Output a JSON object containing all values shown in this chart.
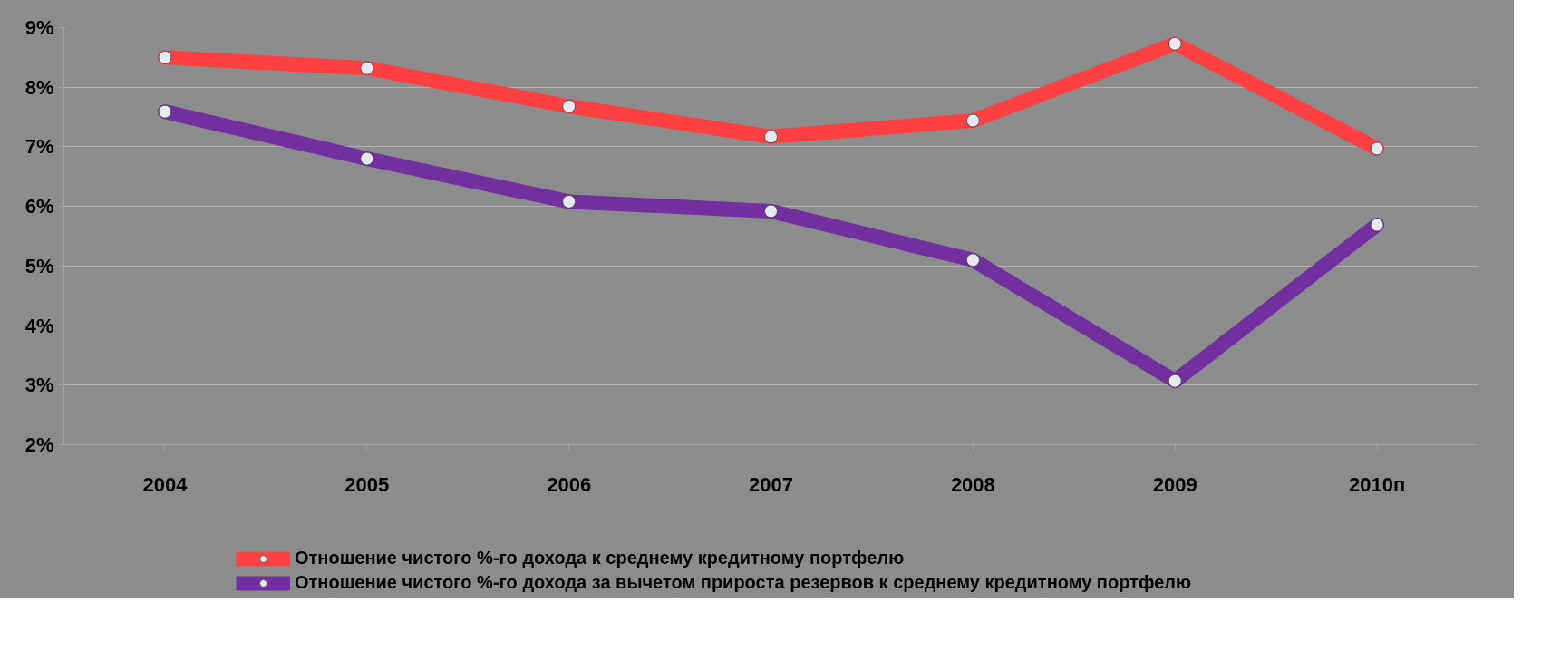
{
  "chart_data": {
    "type": "line",
    "categories": [
      "2004",
      "2005",
      "2006",
      "2007",
      "2008",
      "2009",
      "2010п"
    ],
    "series": [
      {
        "name": "Отношение чистого %-го дохода к среднему кредитному портфелю",
        "color": "#ff4040",
        "values": [
          8.5,
          8.32,
          7.68,
          7.17,
          7.44,
          8.73,
          6.97
        ]
      },
      {
        "name": "Отношение чистого %-го дохода за вычетом прироста резервов к среднему кредитному портфелю",
        "color": "#7030a0",
        "values": [
          7.59,
          6.8,
          6.08,
          5.92,
          5.1,
          3.07,
          5.69
        ]
      }
    ],
    "ylim": [
      2,
      9
    ],
    "yticks": [
      {
        "value": 2,
        "label": "2%"
      },
      {
        "value": 3,
        "label": "3%"
      },
      {
        "value": 4,
        "label": "4%"
      },
      {
        "value": 5,
        "label": "5%"
      },
      {
        "value": 6,
        "label": "6%"
      },
      {
        "value": 7,
        "label": "7%"
      },
      {
        "value": 8,
        "label": "8%"
      },
      {
        "value": 9,
        "label": "9%"
      }
    ],
    "grid": "y",
    "legend": "bottom",
    "marker": "circle",
    "line_style": "solid"
  }
}
